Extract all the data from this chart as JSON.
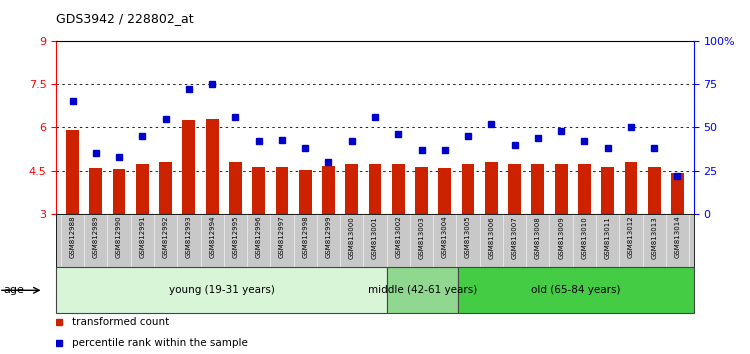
{
  "title": "GDS3942 / 228802_at",
  "samples": [
    "GSM812988",
    "GSM812989",
    "GSM812990",
    "GSM812991",
    "GSM812992",
    "GSM812993",
    "GSM812994",
    "GSM812995",
    "GSM812996",
    "GSM812997",
    "GSM812998",
    "GSM812999",
    "GSM813000",
    "GSM813001",
    "GSM813002",
    "GSM813003",
    "GSM813004",
    "GSM813005",
    "GSM813006",
    "GSM813007",
    "GSM813008",
    "GSM813009",
    "GSM813010",
    "GSM813011",
    "GSM813012",
    "GSM813013",
    "GSM813014"
  ],
  "bar_values": [
    5.9,
    4.6,
    4.55,
    4.75,
    4.82,
    6.25,
    6.3,
    4.82,
    4.62,
    4.62,
    4.53,
    4.65,
    4.75,
    4.75,
    4.72,
    4.62,
    4.6,
    4.75,
    4.8,
    4.72,
    4.75,
    4.75,
    4.72,
    4.62,
    4.82,
    4.62,
    4.42
  ],
  "dot_values": [
    65,
    35,
    33,
    45,
    55,
    72,
    75,
    56,
    42,
    43,
    38,
    30,
    42,
    56,
    46,
    37,
    37,
    45,
    52,
    40,
    44,
    48,
    42,
    38,
    50,
    38,
    22
  ],
  "age_groups": [
    {
      "label": "young (19-31 years)",
      "start": 0,
      "end": 14,
      "color": "#d8f5d8"
    },
    {
      "label": "middle (42-61 years)",
      "start": 14,
      "end": 17,
      "color": "#90d890"
    },
    {
      "label": "old (65-84 years)",
      "start": 17,
      "end": 27,
      "color": "#44cc44"
    }
  ],
  "bar_color": "#cc2200",
  "dot_color": "#0000cc",
  "ylim_left": [
    3.0,
    9.0
  ],
  "ylim_right": [
    0,
    100
  ],
  "yticks_left": [
    3.0,
    4.5,
    6.0,
    7.5,
    9.0
  ],
  "ytick_labels_left": [
    "3",
    "4.5",
    "6",
    "7.5",
    "9"
  ],
  "yticks_right": [
    0,
    25,
    50,
    75,
    100
  ],
  "ytick_labels_right": [
    "0",
    "25",
    "50",
    "75",
    "100%"
  ],
  "grid_values": [
    4.5,
    6.0,
    7.5
  ],
  "legend_items": [
    {
      "label": "transformed count",
      "color": "#cc2200"
    },
    {
      "label": "percentile rank within the sample",
      "color": "#0000cc"
    }
  ],
  "age_label": "age",
  "xlbl_bg": "#c8c8c8",
  "background_color": "#ffffff",
  "bar_width": 0.55
}
